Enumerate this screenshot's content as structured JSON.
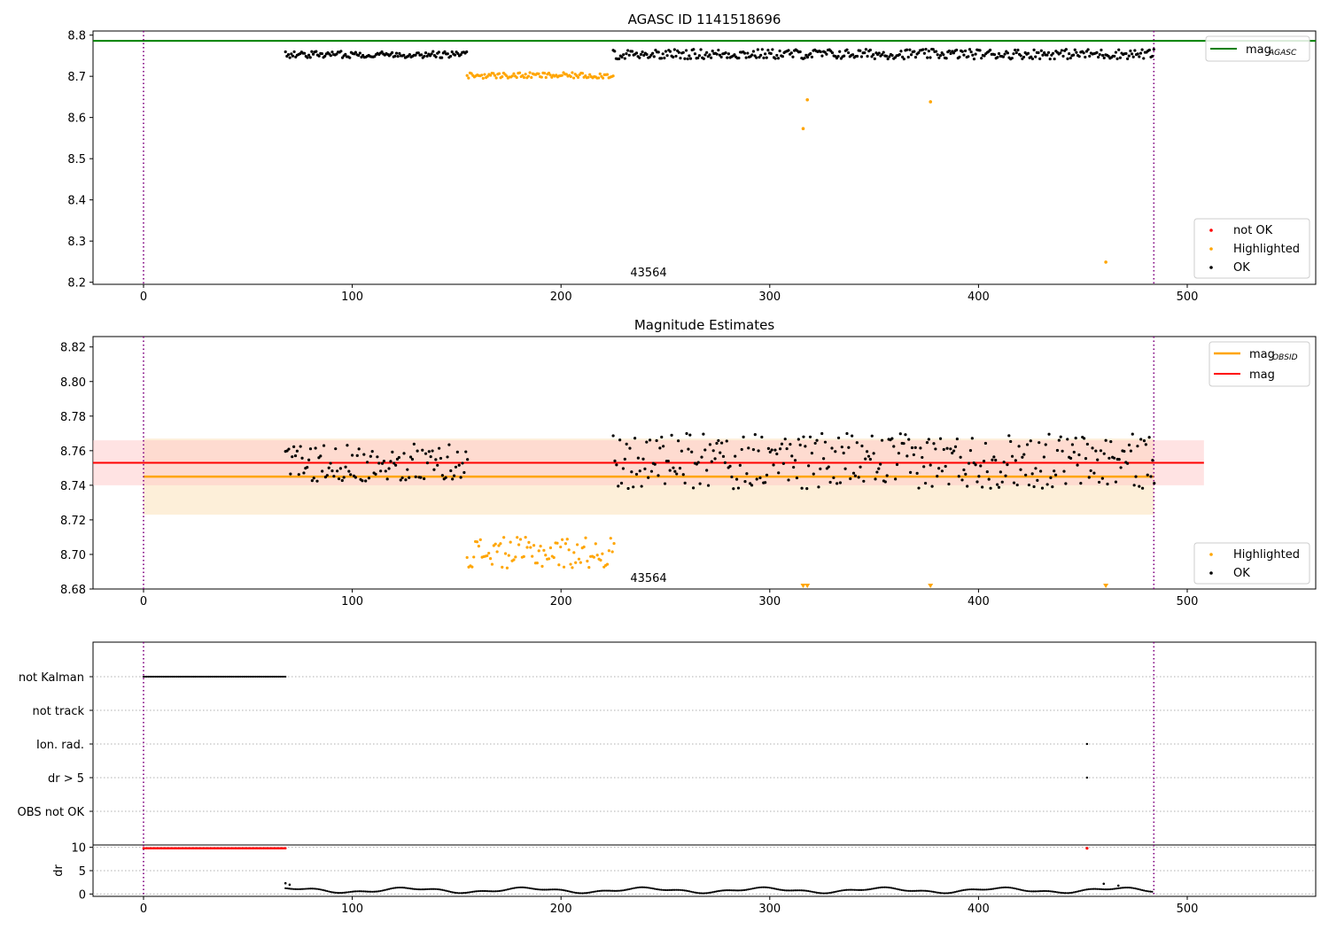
{
  "chart_data": [
    {
      "type": "scatter",
      "title": "AGASC ID 1141518696",
      "xlabel": "",
      "ylabel": "",
      "xlim": [
        -25,
        560
      ],
      "ylim": [
        8.195,
        8.81
      ],
      "xticks": [
        "0",
        "100",
        "200",
        "300",
        "400",
        "500"
      ],
      "yticks": [
        "8.2",
        "8.3",
        "8.4",
        "8.5",
        "8.6",
        "8.7",
        "8.8"
      ],
      "annotation": "43564",
      "vertical_lines": [
        0,
        484
      ],
      "hlines": [
        {
          "name": "mag_AGASC",
          "y": 8.786,
          "color": "#008000"
        }
      ],
      "legend_top": [
        {
          "label": "mag",
          "sub": "AGASC",
          "color": "#008000"
        }
      ],
      "legend_bottom": [
        {
          "label": "not OK",
          "color": "#ff0000"
        },
        {
          "label": "Highlighted",
          "color": "#ffa500"
        },
        {
          "label": "OK",
          "color": "#000000"
        }
      ],
      "series": [
        {
          "name": "OK",
          "color": "#000000",
          "segments": [
            {
              "x0": 68,
              "x1": 155,
              "center": 8.753,
              "amp": 0.008
            },
            {
              "x0": 225,
              "x1": 484,
              "center": 8.754,
              "amp": 0.012
            }
          ]
        },
        {
          "name": "Highlighted",
          "color": "#ffa500",
          "segments": [
            {
              "x0": 155,
              "x1": 225,
              "center": 8.702,
              "amp": 0.007
            }
          ],
          "outliers": [
            [
              316,
              8.573
            ],
            [
              318,
              8.643
            ],
            [
              377,
              8.638
            ],
            [
              461,
              8.249
            ]
          ]
        }
      ]
    },
    {
      "type": "scatter",
      "title": "Magnitude Estimates",
      "xlabel": "",
      "ylabel": "",
      "xlim": [
        -25,
        560
      ],
      "ylim": [
        8.68,
        8.826
      ],
      "xticks": [
        "0",
        "100",
        "200",
        "300",
        "400",
        "500"
      ],
      "yticks": [
        "8.68",
        "8.70",
        "8.72",
        "8.74",
        "8.76",
        "8.78",
        "8.80",
        "8.82"
      ],
      "annotation": "43564",
      "vertical_lines": [
        0,
        484
      ],
      "hlines": [
        {
          "name": "mag_OBSID",
          "y": 8.745,
          "x0": 0,
          "x1": 484,
          "color": "#ffa500",
          "band": [
            8.723,
            8.767
          ],
          "band_color": "#fdebd0"
        },
        {
          "name": "mag",
          "y": 8.753,
          "x0": -25,
          "x1": 508,
          "color": "#ff0000",
          "band": [
            8.74,
            8.766
          ],
          "band_color": "#ffc8c8"
        }
      ],
      "legend_top": [
        {
          "label": "mag",
          "sub": "OBSID",
          "color": "#ffa500"
        },
        {
          "label": "mag",
          "sub": "",
          "color": "#ff0000"
        }
      ],
      "legend_bottom": [
        {
          "label": "Highlighted",
          "color": "#ffa500"
        },
        {
          "label": "OK",
          "color": "#000000"
        }
      ],
      "series": [
        {
          "name": "OK",
          "color": "#000000",
          "segments": [
            {
              "x0": 68,
              "x1": 155,
              "center": 8.753,
              "amp": 0.011
            },
            {
              "x0": 225,
              "x1": 484,
              "center": 8.754,
              "amp": 0.016
            }
          ]
        },
        {
          "name": "Highlighted",
          "color": "#ffa500",
          "segments": [
            {
              "x0": 155,
              "x1": 225,
              "center": 8.701,
              "amp": 0.009
            }
          ],
          "clipped_x": [
            316,
            318,
            377,
            461
          ]
        }
      ]
    },
    {
      "type": "scatter",
      "title": "",
      "xlabel": "",
      "ylabel": "",
      "xlim": [
        -25,
        560
      ],
      "categories": [
        "not Kalman",
        "not track",
        "Ion. rad.",
        "dr > 5",
        "OBS not OK"
      ],
      "flags": [
        {
          "category": "not Kalman",
          "x0": 0,
          "x1": 68
        },
        {
          "category": "Ion. rad.",
          "x": 452
        },
        {
          "category": "dr > 5",
          "x": 452
        }
      ],
      "vertical_lines": [
        0,
        484
      ]
    },
    {
      "type": "scatter",
      "title": "",
      "xlabel": "",
      "ylabel": "dr",
      "xlim": [
        -25,
        560
      ],
      "ylim": [
        -0.5,
        10.5
      ],
      "xticks": [
        "0",
        "100",
        "200",
        "300",
        "400",
        "500"
      ],
      "yticks": [
        "0",
        "5",
        "10"
      ],
      "vertical_lines": [
        0,
        484
      ],
      "series": [
        {
          "name": "clipped",
          "color": "#ff0000",
          "x0": 0,
          "x1": 68,
          "y": 9.8,
          "extra": [
            [
              452,
              9.8
            ]
          ]
        },
        {
          "name": "dr",
          "color": "#000000",
          "x0": 68,
          "x1": 484,
          "spikes": [
            [
              68,
              2.3
            ],
            [
              70,
              2.0
            ],
            [
              460,
              2.2
            ],
            [
              467,
              1.8
            ]
          ]
        }
      ]
    }
  ]
}
